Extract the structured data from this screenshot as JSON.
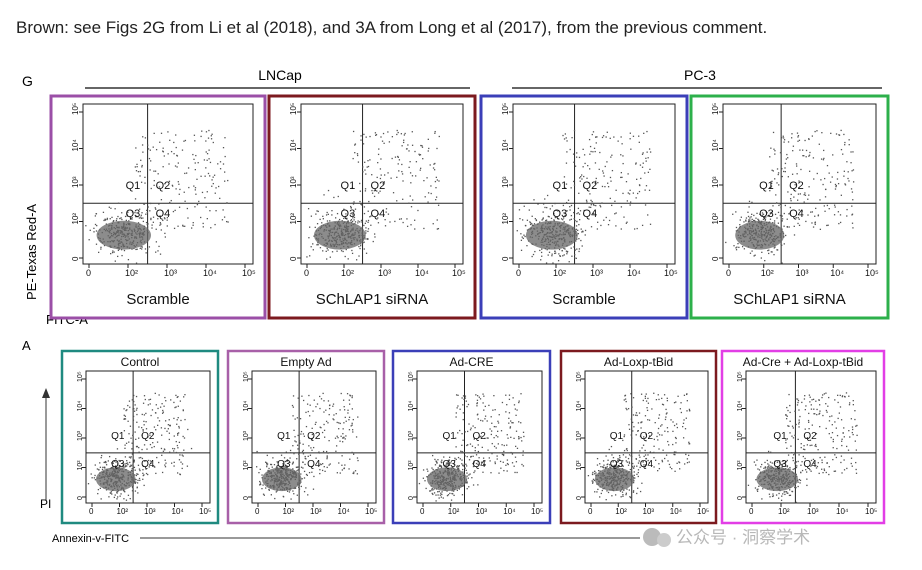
{
  "comment": {
    "text": "Brown: see Figs 2G from Li et al (2018), and 3A from Long et al (2017), from the previous comment."
  },
  "panel_g": {
    "letter": "G",
    "groups": [
      {
        "label": "LNCap"
      },
      {
        "label": "PC-3"
      }
    ],
    "y_axis_label": "PE-Texas Red-A",
    "x_axis_label": "FITC-A",
    "plots": [
      {
        "caption": "Scramble",
        "border": "#9b4fa7"
      },
      {
        "caption": "SChLAP1 siRNA",
        "border": "#7c1a1f"
      },
      {
        "caption": "Scramble",
        "border": "#3b3fb8"
      },
      {
        "caption": "SChLAP1 siRNA",
        "border": "#2db04b"
      }
    ]
  },
  "panel_a": {
    "letter": "A",
    "y_axis_label": "PI",
    "x_axis_label": "Annexin-v-FITC",
    "plots": [
      {
        "title": "Control",
        "border": "#1f8a80"
      },
      {
        "title": "Empty Ad",
        "border": "#a860a8"
      },
      {
        "title": "Ad-CRE",
        "border": "#3b3fb8"
      },
      {
        "title": "Ad-Loxp-tBid",
        "border": "#7c1a1f"
      },
      {
        "title": "Ad-Cre + Ad-Loxp-tBid",
        "border": "#e23ee6"
      }
    ]
  },
  "quadrant_labels": [
    "Q1",
    "Q2",
    "Q3",
    "Q4"
  ],
  "axis_ticks": [
    "0",
    "10²",
    "10³",
    "10⁴",
    "10⁵"
  ],
  "watermark": {
    "text": "公众号 · 洞察学术"
  }
}
